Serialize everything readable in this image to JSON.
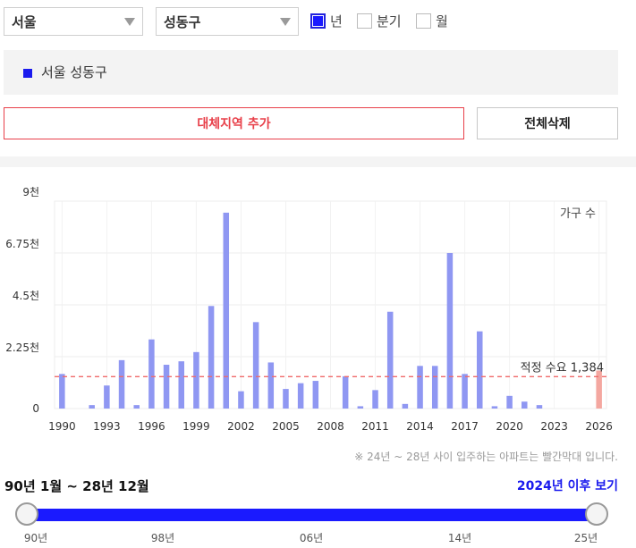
{
  "filters": {
    "region": "서울",
    "district": "성동구",
    "periods": [
      {
        "label": "년",
        "checked": true
      },
      {
        "label": "분기",
        "checked": false
      },
      {
        "label": "월",
        "checked": false
      }
    ]
  },
  "legend": {
    "label": "서울 성동구",
    "color": "#1a1aee"
  },
  "buttons": {
    "add_region": "대체지역 추가",
    "delete_all": "전체삭제"
  },
  "chart_data": {
    "type": "bar",
    "title": "",
    "xlabel": "",
    "ylabel": "",
    "unit_label": "가구 수",
    "ylim": [
      0,
      9000
    ],
    "yticks": [
      "0",
      "2.25천",
      "4.5천",
      "6.75천",
      "9천"
    ],
    "xticks": [
      "1990",
      "1993",
      "1996",
      "1999",
      "2002",
      "2005",
      "2008",
      "2011",
      "2014",
      "2017",
      "2020",
      "2023",
      "2026"
    ],
    "categories": [
      1990,
      1991,
      1992,
      1993,
      1994,
      1995,
      1996,
      1997,
      1998,
      1999,
      2000,
      2001,
      2002,
      2003,
      2004,
      2005,
      2006,
      2007,
      2008,
      2009,
      2010,
      2011,
      2012,
      2013,
      2014,
      2015,
      2016,
      2017,
      2018,
      2019,
      2020,
      2021,
      2022,
      2023,
      2024,
      2025,
      2026
    ],
    "values": [
      1500,
      0,
      150,
      1000,
      2100,
      150,
      3000,
      1900,
      2050,
      2450,
      4450,
      8500,
      750,
      3750,
      2000,
      850,
      1100,
      1200,
      0,
      1400,
      100,
      800,
      4200,
      200,
      1850,
      1850,
      6750,
      1500,
      3350,
      100,
      550,
      300,
      150,
      0,
      0,
      0,
      1650
    ],
    "bar_color": "#8f97f2",
    "future_color": "#f4a7a0",
    "future_from": 2024,
    "reference": {
      "label": "적정 수요",
      "value_text": "1,384",
      "value": 1384,
      "color": "#f06a6a"
    },
    "grid": true
  },
  "note": "※ 24년 ~ 28년 사이 입주하는 아파트는 빨간막대 입니다.",
  "range": {
    "label": "90년 1월 ~ 28년 12월",
    "after_link": "2024년 이후 보기",
    "ticks": [
      "90년",
      "98년",
      "06년",
      "14년",
      "25년"
    ]
  }
}
